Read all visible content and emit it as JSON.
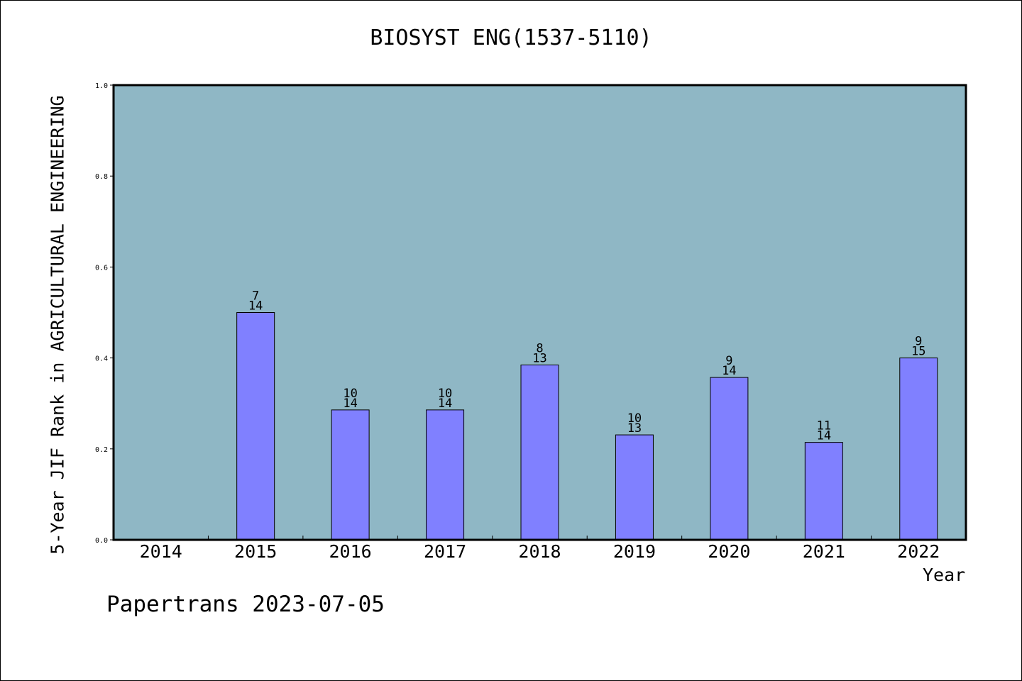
{
  "chart_data": {
    "type": "bar",
    "title": "BIOSYST ENG(1537-5110)",
    "xlabel": "Year",
    "ylabel": "5-Year JIF Rank in AGRICULTURAL ENGINEERING",
    "ylim": [
      0,
      1.0
    ],
    "yticks": [
      "0.0",
      "0.2",
      "0.4",
      "0.6",
      "0.8",
      "1.0"
    ],
    "categories": [
      "2014",
      "2015",
      "2016",
      "2017",
      "2018",
      "2019",
      "2020",
      "2021",
      "2022"
    ],
    "values": [
      null,
      0.5,
      0.2857,
      0.2857,
      0.3846,
      0.2308,
      0.3571,
      0.2143,
      0.4
    ],
    "ranks": [
      null,
      "7",
      "10",
      "10",
      "8",
      "10",
      "9",
      "11",
      "9"
    ],
    "totals": [
      null,
      "14",
      "14",
      "14",
      "13",
      "13",
      "14",
      "14",
      "15"
    ],
    "grid": false,
    "colors": {
      "plot_background": "#8fb7c5",
      "bar_fill": "#8080ff",
      "bar_stroke": "#000000"
    }
  },
  "footer": "Papertrans 2023-07-05"
}
